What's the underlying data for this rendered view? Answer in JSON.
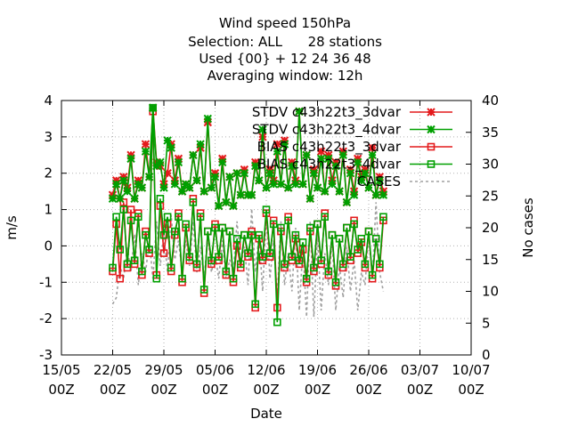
{
  "chart_data": {
    "type": "line",
    "title_lines": [
      "Wind speed 150hPa",
      "Selection: ALL      28 stations",
      "Used {00} + 12 24 36 48",
      "Averaging window: 12h"
    ],
    "xlabel": "Date",
    "ylabel": "m/s",
    "y2label": "No cases",
    "xlim": [
      0,
      56
    ],
    "ylim": [
      -3,
      4
    ],
    "y2lim": [
      0,
      40
    ],
    "x_ticks": [
      {
        "x": 0,
        "line1": "15/05",
        "line2": "00Z"
      },
      {
        "x": 7,
        "line1": "22/05",
        "line2": "00Z"
      },
      {
        "x": 14,
        "line1": "29/05",
        "line2": "00Z"
      },
      {
        "x": 21,
        "line1": "05/06",
        "line2": "00Z"
      },
      {
        "x": 28,
        "line1": "12/06",
        "line2": "00Z"
      },
      {
        "x": 35,
        "line1": "19/06",
        "line2": "00Z"
      },
      {
        "x": 42,
        "line1": "26/06",
        "line2": "00Z"
      },
      {
        "x": 49,
        "line1": "03/07",
        "line2": "00Z"
      },
      {
        "x": 56,
        "line1": "10/07",
        "line2": "00Z"
      }
    ],
    "y_ticks": [
      -3,
      -2,
      -1,
      0,
      1,
      2,
      3,
      4
    ],
    "y2_ticks": [
      0,
      5,
      10,
      15,
      20,
      25,
      30,
      35,
      40
    ],
    "grid": true,
    "legend_position": "top-right",
    "x_start": 7,
    "x_step": 0.5,
    "series": [
      {
        "name": "STDV c43h22t3_3dvar",
        "color": "#e41a1c",
        "marker": "star",
        "values": [
          1.4,
          1.8,
          1.3,
          1.9,
          1.6,
          2.5,
          1.3,
          1.8,
          1.6,
          2.8,
          1.9,
          3.8,
          2.3,
          2.2,
          1.7,
          2.0,
          2.8,
          1.8,
          2.4,
          1.5,
          1.7,
          1.6,
          2.5,
          1.8,
          2.7,
          1.5,
          3.4,
          1.6,
          2.0,
          1.1,
          2.4,
          1.2,
          1.9,
          1.1,
          2.0,
          1.4,
          2.1,
          1.4,
          1.4,
          2.3,
          1.8,
          3.0,
          1.6,
          2.1,
          1.8,
          2.8,
          1.7,
          2.9,
          1.6,
          2.3,
          1.8,
          3.7,
          1.7,
          2.5,
          1.3,
          2.1,
          1.6,
          2.6,
          1.5,
          2.5,
          1.8,
          2.3,
          1.5,
          2.6,
          1.2,
          2.1,
          1.5,
          2.4,
          1.9,
          2.1,
          1.6,
          2.7,
          1.4,
          1.9,
          1.5
        ]
      },
      {
        "name": "STDV c43h22t3_4dvar",
        "color": "#00a000",
        "marker": "star",
        "values": [
          1.3,
          1.7,
          1.3,
          1.8,
          1.5,
          2.4,
          1.3,
          1.7,
          1.6,
          2.6,
          1.9,
          3.8,
          2.2,
          2.3,
          1.6,
          2.9,
          2.7,
          1.7,
          2.3,
          1.5,
          1.7,
          1.6,
          2.5,
          1.8,
          2.8,
          1.5,
          3.5,
          1.6,
          1.9,
          1.1,
          2.3,
          1.2,
          1.9,
          1.1,
          2.0,
          1.4,
          2.0,
          1.4,
          1.4,
          2.2,
          1.8,
          3.2,
          1.6,
          2.0,
          1.7,
          2.6,
          1.7,
          2.8,
          1.6,
          2.2,
          1.7,
          3.7,
          1.7,
          2.5,
          1.3,
          2.0,
          1.6,
          2.4,
          1.5,
          2.4,
          1.7,
          2.2,
          1.5,
          2.5,
          1.2,
          2.0,
          1.4,
          2.3,
          1.8,
          2.0,
          1.6,
          2.5,
          1.4,
          1.8,
          1.4
        ]
      },
      {
        "name": "BIAS c43h22t3_3dvar",
        "color": "#e41a1c",
        "marker": "square",
        "values": [
          -0.7,
          0.6,
          -0.9,
          1.2,
          -0.6,
          1.0,
          -0.5,
          0.9,
          -0.8,
          0.4,
          -0.2,
          3.7,
          -0.8,
          1.1,
          -0.2,
          0.6,
          -0.7,
          0.3,
          0.9,
          -1.0,
          0.5,
          -0.4,
          1.3,
          -0.6,
          0.9,
          -1.3,
          0.4,
          -0.5,
          0.6,
          -0.4,
          0.5,
          -0.8,
          0.4,
          -1.0,
          0.0,
          -0.6,
          0.3,
          -0.3,
          0.4,
          -1.7,
          0.2,
          -0.4,
          0.9,
          -0.3,
          0.7,
          -1.7,
          0.4,
          -0.6,
          0.8,
          -0.4,
          0.2,
          -0.5,
          -0.1,
          -1.0,
          0.4,
          -0.7,
          0.6,
          -0.5,
          0.9,
          -0.8,
          0.3,
          -1.1,
          0.2,
          -0.6,
          0.5,
          -0.4,
          0.7,
          -0.2,
          0.1,
          -0.6,
          0.4,
          -0.9,
          0.2,
          -0.6,
          0.7
        ]
      },
      {
        "name": "BIAS c43h22t3_4dvar",
        "color": "#00a000",
        "marker": "square",
        "values": [
          -0.6,
          0.8,
          -0.1,
          1.0,
          -0.5,
          0.7,
          -0.4,
          0.8,
          -0.7,
          0.3,
          -0.1,
          3.8,
          -0.9,
          1.3,
          0.3,
          0.8,
          -0.6,
          0.4,
          0.8,
          -0.9,
          0.6,
          -0.3,
          1.2,
          -0.5,
          0.8,
          -1.2,
          0.4,
          -0.4,
          0.5,
          -0.3,
          0.5,
          -0.7,
          0.4,
          -0.9,
          0.2,
          -0.5,
          0.3,
          -0.2,
          0.3,
          -1.6,
          0.3,
          -0.3,
          1.0,
          -0.2,
          0.6,
          -2.1,
          0.5,
          -0.5,
          0.7,
          -0.3,
          0.3,
          -0.4,
          0.1,
          -0.9,
          0.5,
          -0.6,
          0.6,
          -0.4,
          0.8,
          -0.7,
          0.3,
          -1.0,
          0.2,
          -0.5,
          0.5,
          -0.3,
          0.6,
          -0.1,
          0.2,
          -0.5,
          0.4,
          -0.8,
          0.2,
          -0.5,
          0.8
        ]
      },
      {
        "name": "CASES",
        "color": "#a0a0a0",
        "marker": "none",
        "axis": "y2",
        "values": [
          8,
          9,
          14,
          12,
          17,
          13,
          19,
          11,
          16,
          13,
          18,
          12,
          21,
          14,
          19,
          13,
          22,
          15,
          18,
          13,
          18,
          14,
          21,
          13,
          17,
          12,
          19,
          13,
          16,
          12,
          18,
          12,
          15,
          13,
          21,
          14,
          17,
          11,
          23,
          13,
          19,
          10,
          22,
          12,
          18,
          9,
          21,
          11,
          16,
          10,
          20,
          7,
          17,
          6,
          21,
          6,
          19,
          7,
          16,
          11,
          18,
          7,
          14,
          9,
          17,
          10,
          15,
          7,
          13,
          11,
          19,
          12,
          24,
          13,
          10
        ]
      }
    ]
  }
}
